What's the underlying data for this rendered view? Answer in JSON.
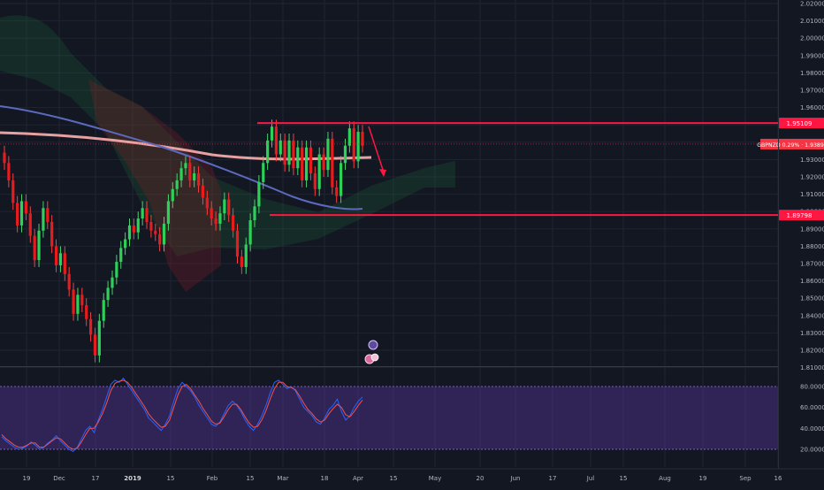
{
  "chart_data": [
    {
      "type": "candlestick",
      "price_axis": {
        "ticks": [
          "2.02000",
          "2.01000",
          "2.00000",
          "1.99000",
          "1.98000",
          "1.97000",
          "1.96000",
          "1.95000",
          "1.94000",
          "1.93000",
          "1.92000",
          "1.91000",
          "1.90000",
          "1.89000",
          "1.88000",
          "1.87000",
          "1.86000",
          "1.85000",
          "1.84000",
          "1.83000",
          "1.82000",
          "1.81000"
        ],
        "ylim": [
          1.8,
          2.022
        ]
      },
      "time_axis": {
        "labels": [
          "19",
          "Dec",
          "17",
          "2019",
          "15",
          "Feb",
          "15",
          "Mar",
          "18",
          "Apr",
          "15",
          "May",
          "20",
          "Jun",
          "17",
          "Jul",
          "15",
          "Aug",
          "19",
          "Sep",
          "16"
        ]
      },
      "levels": [
        {
          "label": "1.95109",
          "value": 1.95109,
          "color": "#ff1744"
        },
        {
          "label": "1.89798",
          "value": 1.89798,
          "color": "#ff1744"
        }
      ],
      "current_price": {
        "label": "GBPNZD 0.29% · 1.93891",
        "value": 1.93891,
        "color": "#f23645"
      },
      "candles_close": [
        1.928,
        1.918,
        1.905,
        1.892,
        1.906,
        1.899,
        1.886,
        1.872,
        1.889,
        1.902,
        1.894,
        1.88,
        1.869,
        1.876,
        1.864,
        1.855,
        1.841,
        1.852,
        1.846,
        1.838,
        1.829,
        1.817,
        1.837,
        1.849,
        1.856,
        1.862,
        1.871,
        1.879,
        1.884,
        1.892,
        1.888,
        1.896,
        1.902,
        1.894,
        1.889,
        1.887,
        1.881,
        1.893,
        1.906,
        1.913,
        1.918,
        1.925,
        1.928,
        1.918,
        1.922,
        1.915,
        1.908,
        1.902,
        1.896,
        1.893,
        1.899,
        1.907,
        1.898,
        1.889,
        1.874,
        1.868,
        1.881,
        1.895,
        1.903,
        1.917,
        1.928,
        1.941,
        1.949,
        1.933,
        1.941,
        1.927,
        1.941,
        1.925,
        1.937,
        1.918,
        1.937,
        1.922,
        1.913,
        1.933,
        1.924,
        1.942,
        1.914,
        1.909,
        1.928,
        1.938,
        1.948,
        1.929,
        1.946,
        1.938
      ],
      "moving_averages": [
        {
          "color": "#e8a0a0"
        },
        {
          "color": "#5b6abf"
        }
      ],
      "annotation": {
        "type": "arrow",
        "color": "#ff1744"
      }
    },
    {
      "type": "line",
      "indicator": "stochastic",
      "axis_ticks": [
        "80.0000",
        "60.0000",
        "40.0000",
        "20.0000"
      ],
      "ylim": [
        10,
        90
      ],
      "band": [
        20,
        80
      ],
      "series": [
        {
          "color": "#2962ff",
          "values": [
            32,
            28,
            25,
            22,
            20,
            21,
            23,
            27,
            24,
            20,
            22,
            26,
            29,
            33,
            28,
            24,
            20,
            18,
            22,
            30,
            38,
            42,
            36,
            48,
            58,
            70,
            82,
            86,
            84,
            88,
            82,
            76,
            70,
            64,
            58,
            50,
            46,
            42,
            38,
            44,
            52,
            66,
            78,
            84,
            80,
            76,
            70,
            62,
            56,
            50,
            44,
            42,
            46,
            54,
            62,
            66,
            62,
            56,
            48,
            42,
            38,
            44,
            52,
            62,
            74,
            84,
            86,
            82,
            78,
            80,
            76,
            68,
            60,
            56,
            52,
            46,
            44,
            50,
            58,
            62,
            68,
            56,
            48,
            52,
            60,
            66,
            70
          ]
        },
        {
          "color": "#ef5350",
          "values": [
            34,
            30,
            27,
            24,
            22,
            22,
            24,
            26,
            26,
            22,
            22,
            25,
            28,
            31,
            30,
            26,
            22,
            20,
            21,
            27,
            34,
            40,
            40,
            46,
            54,
            64,
            76,
            83,
            85,
            86,
            84,
            79,
            73,
            67,
            61,
            54,
            49,
            45,
            41,
            42,
            48,
            60,
            72,
            80,
            82,
            78,
            72,
            66,
            59,
            53,
            47,
            44,
            45,
            51,
            58,
            63,
            63,
            58,
            51,
            45,
            41,
            42,
            48,
            57,
            68,
            78,
            84,
            84,
            80,
            79,
            77,
            71,
            64,
            58,
            54,
            49,
            46,
            48,
            54,
            59,
            63,
            60,
            53,
            51,
            56,
            62,
            67
          ]
        }
      ]
    }
  ]
}
